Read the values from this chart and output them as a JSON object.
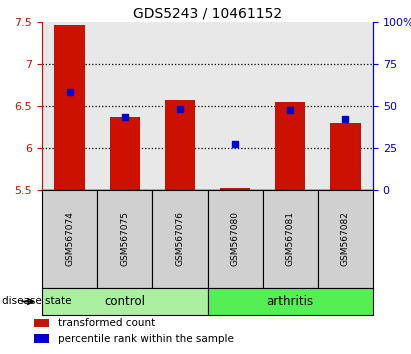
{
  "title": "GDS5243 / 10461152",
  "samples": [
    "GSM567074",
    "GSM567075",
    "GSM567076",
    "GSM567080",
    "GSM567081",
    "GSM567082"
  ],
  "red_values": [
    7.47,
    6.37,
    6.57,
    5.52,
    6.55,
    6.3
  ],
  "blue_values": [
    6.67,
    6.37,
    6.47,
    6.05,
    6.45,
    6.35
  ],
  "ylim_left": [
    5.5,
    7.5
  ],
  "ylim_right": [
    0,
    100
  ],
  "yticks_left": [
    5.5,
    6.0,
    6.5,
    7.0,
    7.5
  ],
  "yticks_right": [
    0,
    25,
    50,
    75,
    100
  ],
  "ytick_labels_right": [
    "0",
    "25",
    "50",
    "75",
    "100%"
  ],
  "grid_lines": [
    6.0,
    6.5,
    7.0
  ],
  "groups": [
    {
      "label": "control",
      "indices": [
        0,
        1,
        2
      ],
      "color": "#aaf0a0"
    },
    {
      "label": "arthritis",
      "indices": [
        3,
        4,
        5
      ],
      "color": "#55ee55"
    }
  ],
  "bar_color_red": "#cc1100",
  "marker_color_blue": "#0000cc",
  "bar_width": 0.55,
  "plot_bg_color": "#e8e8e8",
  "left_axis_color": "#cc1100",
  "right_axis_color": "#0000cc",
  "disease_state_label": "disease state",
  "legend_items": [
    {
      "color": "#cc1100",
      "label": "transformed count"
    },
    {
      "color": "#0000cc",
      "label": "percentile rank within the sample"
    }
  ],
  "sample_box_color": "#d0d0d0",
  "figsize": [
    4.11,
    3.54
  ],
  "dpi": 100
}
